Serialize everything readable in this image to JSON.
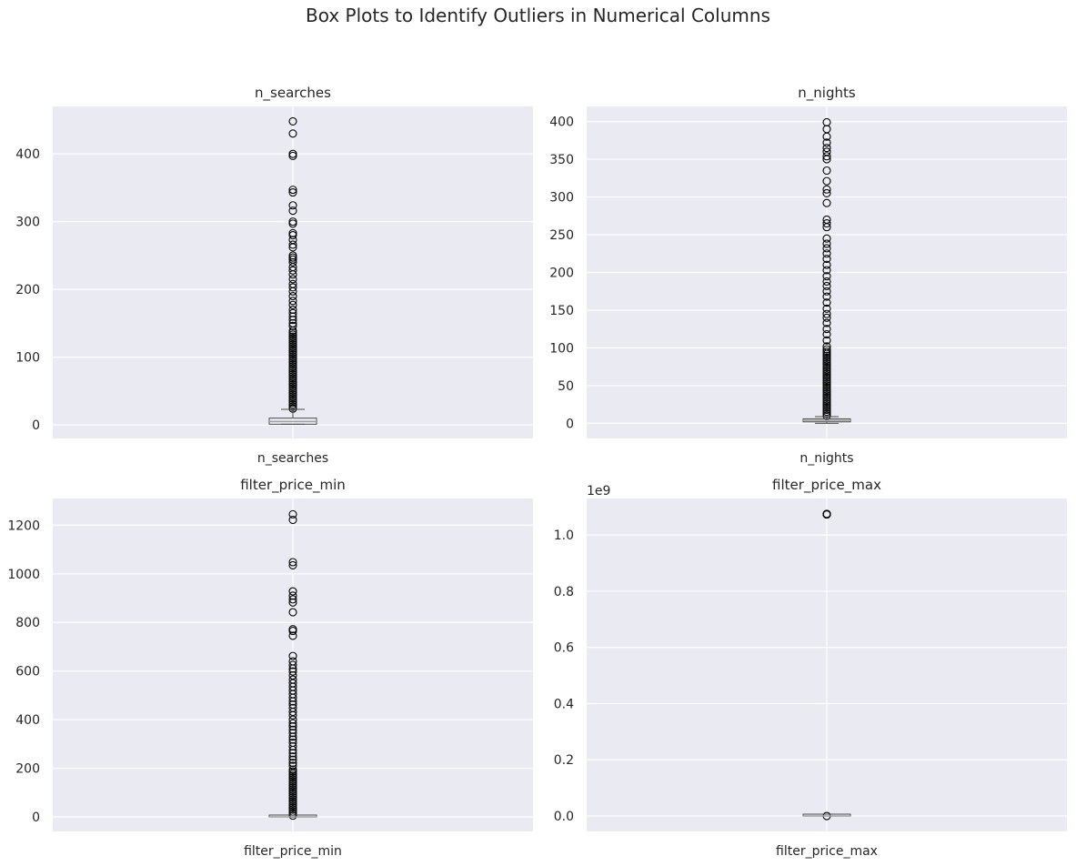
{
  "figure": {
    "suptitle": "Box Plots to Identify Outliers in Numerical Columns"
  },
  "colors": {
    "plot_background": "#eaeaf2",
    "grid": "#ffffff",
    "box": "#4d4d4d",
    "median": "#a0a0a0",
    "outlier": "#000000",
    "text": "#262626"
  },
  "chart_data": [
    {
      "type": "box",
      "title": "n_searches",
      "category": "n_searches",
      "ylim": [
        -20,
        470
      ],
      "yticks": [
        0,
        100,
        200,
        300,
        400
      ],
      "ytick_labels": [
        "0",
        "100",
        "200",
        "300",
        "400"
      ],
      "offset_text": "",
      "grid": true,
      "stats": {
        "whisker_low": 1,
        "q1": 1,
        "median": 5,
        "q3": 10,
        "whisker_high": 23
      },
      "outlier_dense_range": [
        24,
        140
      ],
      "outliers": [
        448,
        430,
        400,
        397,
        347,
        343,
        324,
        316,
        300,
        297,
        283,
        280,
        273,
        266,
        262,
        250,
        247,
        244,
        240,
        233,
        228,
        222,
        215,
        208,
        203,
        197,
        190,
        183,
        177,
        170,
        165,
        160,
        155,
        150,
        146
      ]
    },
    {
      "type": "box",
      "title": "n_nights",
      "category": "n_nights",
      "ylim": [
        -20,
        420
      ],
      "yticks": [
        0,
        50,
        100,
        150,
        200,
        250,
        300,
        350,
        400
      ],
      "ytick_labels": [
        "0",
        "50",
        "100",
        "150",
        "200",
        "250",
        "300",
        "350",
        "400"
      ],
      "offset_text": "",
      "grid": true,
      "stats": {
        "whisker_low": 0,
        "q1": 2,
        "median": 4,
        "q3": 6,
        "whisker_high": 9
      },
      "outlier_dense_range": [
        10,
        95
      ],
      "outliers": [
        399,
        390,
        380,
        372,
        365,
        360,
        354,
        350,
        335,
        321,
        310,
        305,
        292,
        270,
        265,
        260,
        245,
        238,
        232,
        225,
        218,
        210,
        203,
        195,
        188,
        182,
        175,
        168,
        160,
        152,
        145,
        140,
        133,
        125,
        118,
        110,
        102,
        98
      ]
    },
    {
      "type": "box",
      "title": "filter_price_min",
      "category": "filter_price_min",
      "ylim": [
        -60,
        1310
      ],
      "yticks": [
        0,
        200,
        400,
        600,
        800,
        1000,
        1200
      ],
      "ytick_labels": [
        "0",
        "200",
        "400",
        "600",
        "800",
        "1000",
        "1200"
      ],
      "offset_text": "",
      "grid": true,
      "stats": {
        "whisker_low": 0,
        "q1": 0,
        "median": 0,
        "q3": 0,
        "whisker_high": 0
      },
      "outlier_dense_range": [
        5,
        200
      ],
      "outliers": [
        1245,
        1222,
        1048,
        1035,
        928,
        910,
        895,
        882,
        842,
        772,
        765,
        745,
        662,
        640,
        625,
        610,
        598,
        582,
        565,
        550,
        535,
        520,
        505,
        490,
        475,
        462,
        448,
        432,
        418,
        400,
        385,
        372,
        358,
        345,
        330,
        318,
        305,
        290,
        275,
        262,
        248,
        235,
        222,
        210
      ]
    },
    {
      "type": "box",
      "title": "filter_price_max",
      "category": "filter_price_max",
      "ylim": [
        -0.055,
        1.13
      ],
      "yticks": [
        0.0,
        0.2,
        0.4,
        0.6,
        0.8,
        1.0
      ],
      "ytick_labels": [
        "0.0",
        "0.2",
        "0.4",
        "0.6",
        "0.8",
        "1.0"
      ],
      "offset_text": "1e9",
      "grid": true,
      "stats": {
        "whisker_low": 0,
        "q1": 0,
        "median": 0,
        "q3": 0,
        "whisker_high": 0
      },
      "outlier_dense_range": [
        0.0,
        0.003
      ],
      "outliers": [
        1.074,
        1.0735,
        1.0745,
        1.073,
        1.075
      ]
    }
  ]
}
